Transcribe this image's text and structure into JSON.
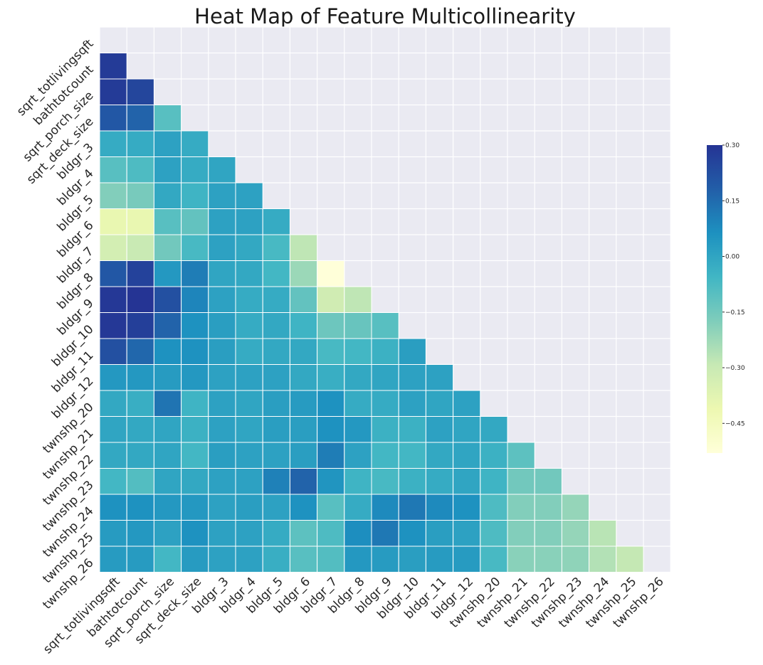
{
  "chart_data": {
    "type": "heatmap",
    "title": "Heat Map of Feature Multicollinearity",
    "labels": [
      "sqrt_totlivingsqft",
      "bathtotcount",
      "sqrt_porch_size",
      "sqrt_deck_size",
      "bldgr_3",
      "bldgr_4",
      "bldgr_5",
      "bldgr_6",
      "bldgr_7",
      "bldgr_8",
      "bldgr_9",
      "bldgr_10",
      "bldgr_11",
      "bldgr_12",
      "twnshp_20",
      "twnshp_21",
      "twnshp_22",
      "twnshp_23",
      "twnshp_24",
      "twnshp_25",
      "twnshp_26"
    ],
    "mask": "upper-triangle incl. diagonal",
    "values": [
      [],
      [
        0.28
      ],
      [
        0.28,
        0.25
      ],
      [
        0.2,
        0.17,
        -0.1
      ],
      [
        -0.02,
        -0.02,
        0.01,
        -0.02
      ],
      [
        -0.1,
        -0.08,
        0.01,
        -0.02,
        0.0
      ],
      [
        -0.18,
        -0.16,
        -0.01,
        -0.05,
        0.01,
        0.01
      ],
      [
        -0.4,
        -0.4,
        -0.1,
        -0.12,
        0.01,
        0.01,
        -0.02
      ],
      [
        -0.33,
        -0.3,
        -0.15,
        -0.07,
        0.01,
        -0.01,
        -0.07,
        -0.28
      ],
      [
        0.2,
        0.26,
        0.04,
        0.11,
        0.0,
        -0.01,
        -0.06,
        -0.22,
        -0.53
      ],
      [
        0.29,
        0.3,
        0.22,
        0.09,
        0.01,
        -0.02,
        -0.02,
        -0.12,
        -0.32,
        -0.28
      ],
      [
        0.29,
        0.27,
        0.17,
        0.06,
        0.02,
        -0.02,
        -0.01,
        -0.05,
        -0.14,
        -0.13,
        -0.1
      ],
      [
        0.22,
        0.16,
        0.06,
        0.06,
        0.02,
        -0.02,
        -0.01,
        -0.01,
        -0.07,
        -0.06,
        -0.04,
        0.02
      ],
      [
        0.04,
        0.04,
        0.03,
        0.04,
        0.01,
        0.01,
        0.01,
        -0.01,
        -0.03,
        -0.01,
        0.0,
        0.01,
        0.01
      ],
      [
        -0.01,
        -0.03,
        0.13,
        -0.05,
        0.01,
        0.0,
        0.02,
        0.03,
        0.06,
        -0.02,
        -0.02,
        0.01,
        0.0,
        0.01
      ],
      [
        0.0,
        -0.01,
        0.0,
        -0.04,
        0.01,
        0.0,
        0.02,
        0.02,
        0.06,
        0.04,
        -0.04,
        -0.04,
        0.01,
        0.0,
        -0.01
      ],
      [
        -0.01,
        -0.01,
        0.0,
        -0.06,
        0.02,
        0.01,
        0.01,
        0.02,
        0.11,
        0.01,
        -0.06,
        -0.06,
        -0.01,
        0.0,
        -0.04,
        -0.11
      ],
      [
        -0.06,
        -0.09,
        0.0,
        -0.01,
        0.01,
        0.01,
        0.1,
        0.17,
        0.05,
        -0.05,
        -0.07,
        -0.04,
        -0.02,
        0.0,
        -0.05,
        -0.15,
        -0.15
      ],
      [
        0.06,
        0.06,
        0.04,
        0.04,
        0.01,
        0.02,
        0.01,
        0.06,
        -0.1,
        -0.02,
        0.08,
        0.12,
        0.08,
        0.06,
        -0.08,
        -0.18,
        -0.18,
        -0.21
      ],
      [
        0.03,
        0.04,
        0.01,
        0.06,
        0.01,
        0.01,
        -0.02,
        -0.11,
        -0.08,
        0.07,
        0.12,
        0.06,
        0.02,
        0.01,
        -0.08,
        -0.18,
        -0.18,
        -0.21,
        -0.27
      ],
      [
        0.03,
        0.03,
        -0.06,
        0.03,
        0.01,
        0.01,
        -0.03,
        -0.1,
        -0.09,
        0.04,
        0.03,
        0.02,
        0.03,
        0.03,
        -0.07,
        -0.19,
        -0.19,
        -0.2,
        -0.26,
        -0.29
      ]
    ],
    "colorbar": {
      "vmin": -0.53,
      "vmax": 0.3,
      "ticks": [
        "0.30",
        "0.15",
        "0.00",
        "−0.15",
        "−0.30",
        "−0.45"
      ]
    },
    "colormap": [
      "#ffffd9",
      "#edf8b1",
      "#c7e9b4",
      "#7fcdbb",
      "#41b6c4",
      "#1d91c0",
      "#225ea8",
      "#253494"
    ],
    "grid": true,
    "legend": "colorbar right"
  }
}
